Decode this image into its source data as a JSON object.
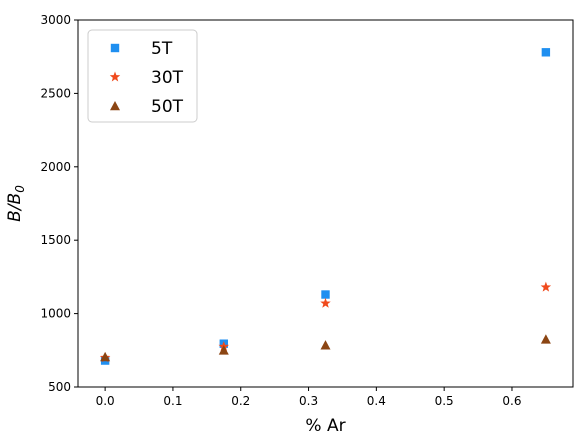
{
  "chart_data": {
    "type": "scatter",
    "xlabel": "% Ar",
    "ylabel_main": "B/B",
    "ylabel_sub": "0",
    "xlim": [
      -0.04,
      0.69
    ],
    "ylim": [
      500,
      3000
    ],
    "x_ticks": [
      0.0,
      0.1,
      0.2,
      0.3,
      0.4,
      0.5,
      0.6
    ],
    "x_tick_labels": [
      "0.0",
      "0.1",
      "0.2",
      "0.3",
      "0.4",
      "0.5",
      "0.6"
    ],
    "y_ticks": [
      500,
      1000,
      1500,
      2000,
      2500,
      3000
    ],
    "y_tick_labels": [
      "500",
      "1000",
      "1500",
      "2000",
      "2500",
      "3000"
    ],
    "grid": false,
    "legend_position": "top-left",
    "series": [
      {
        "name": "5T",
        "marker": "square",
        "color": "#1f8ff0",
        "points": [
          [
            0.0,
            680
          ],
          [
            0.175,
            795
          ],
          [
            0.325,
            1130
          ],
          [
            0.65,
            2780
          ]
        ]
      },
      {
        "name": "30T",
        "marker": "star",
        "color": "#f04a1c",
        "points": [
          [
            0.0,
            700
          ],
          [
            0.175,
            775
          ],
          [
            0.325,
            1070
          ],
          [
            0.65,
            1180
          ]
        ]
      },
      {
        "name": "50T",
        "marker": "triangle",
        "color": "#8b4513",
        "points": [
          [
            0.0,
            705
          ],
          [
            0.175,
            750
          ],
          [
            0.325,
            785
          ],
          [
            0.65,
            825
          ]
        ]
      }
    ]
  }
}
